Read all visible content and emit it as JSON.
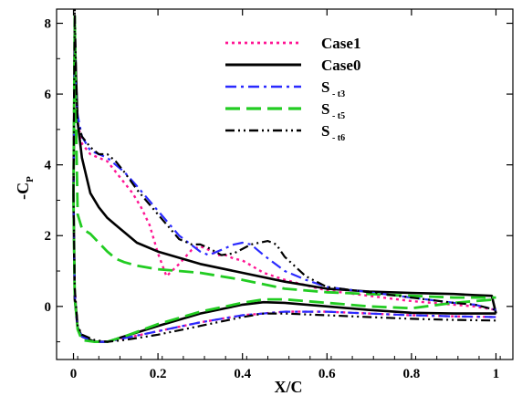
{
  "chart_data": {
    "type": "line",
    "xlabel": "X/C",
    "ylabel": "-C",
    "ylabel_sub": "P",
    "xlim": [
      -0.04,
      1.04
    ],
    "ylim": [
      -1.5,
      8.4
    ],
    "xticks": [
      0,
      0.2,
      0.4,
      0.6,
      0.8,
      1
    ],
    "xtick_labels": [
      "0",
      "0.2",
      "0.4",
      "0.6",
      "0.8",
      "1"
    ],
    "yticks": [
      0,
      2,
      4,
      6,
      8
    ],
    "ytick_labels": [
      "0",
      "2",
      "4",
      "6",
      "8"
    ],
    "grid": false,
    "legend_position": "top-right",
    "series": [
      {
        "name": "Case1",
        "color": "#ff1493",
        "dash": "dotted",
        "upper": [
          [
            0,
            3.2
          ],
          [
            0.003,
            6.8
          ],
          [
            0.006,
            6.0
          ],
          [
            0.01,
            5.2
          ],
          [
            0.02,
            4.6
          ],
          [
            0.04,
            4.3
          ],
          [
            0.06,
            4.2
          ],
          [
            0.08,
            4.1
          ],
          [
            0.1,
            3.8
          ],
          [
            0.12,
            3.5
          ],
          [
            0.14,
            3.2
          ],
          [
            0.16,
            2.8
          ],
          [
            0.18,
            2.3
          ],
          [
            0.2,
            1.5
          ],
          [
            0.22,
            0.85
          ],
          [
            0.25,
            1.2
          ],
          [
            0.28,
            1.6
          ],
          [
            0.3,
            1.7
          ],
          [
            0.32,
            1.6
          ],
          [
            0.34,
            1.45
          ],
          [
            0.36,
            1.45
          ],
          [
            0.38,
            1.35
          ],
          [
            0.4,
            1.3
          ],
          [
            0.45,
            0.95
          ],
          [
            0.5,
            0.75
          ],
          [
            0.6,
            0.45
          ],
          [
            0.7,
            0.3
          ],
          [
            0.8,
            0.15
          ],
          [
            0.9,
            0.05
          ],
          [
            0.95,
            0.0
          ],
          [
            1.0,
            -0.1
          ]
        ],
        "lower": [
          [
            0,
            3.2
          ],
          [
            0.003,
            0.5
          ],
          [
            0.01,
            -0.6
          ],
          [
            0.02,
            -0.85
          ],
          [
            0.05,
            -1.0
          ],
          [
            0.08,
            -1.0
          ],
          [
            0.12,
            -0.9
          ],
          [
            0.2,
            -0.7
          ],
          [
            0.3,
            -0.45
          ],
          [
            0.4,
            -0.25
          ],
          [
            0.5,
            -0.15
          ],
          [
            0.6,
            -0.15
          ],
          [
            0.7,
            -0.2
          ],
          [
            0.8,
            -0.25
          ],
          [
            0.9,
            -0.28
          ],
          [
            1.0,
            -0.3
          ]
        ]
      },
      {
        "name": "Case0",
        "color": "#000000",
        "dash": "solid",
        "upper": [
          [
            0,
            3.1
          ],
          [
            0.003,
            7.9
          ],
          [
            0.006,
            6.5
          ],
          [
            0.01,
            5.2
          ],
          [
            0.02,
            4.2
          ],
          [
            0.04,
            3.2
          ],
          [
            0.06,
            2.8
          ],
          [
            0.08,
            2.5
          ],
          [
            0.1,
            2.3
          ],
          [
            0.15,
            1.8
          ],
          [
            0.2,
            1.55
          ],
          [
            0.3,
            1.2
          ],
          [
            0.4,
            0.95
          ],
          [
            0.5,
            0.7
          ],
          [
            0.6,
            0.5
          ],
          [
            0.7,
            0.42
          ],
          [
            0.8,
            0.38
          ],
          [
            0.9,
            0.35
          ],
          [
            0.95,
            0.32
          ],
          [
            0.99,
            0.3
          ],
          [
            1.0,
            -0.2
          ]
        ],
        "lower": [
          [
            0,
            3.1
          ],
          [
            0.003,
            0.2
          ],
          [
            0.01,
            -0.6
          ],
          [
            0.02,
            -0.85
          ],
          [
            0.05,
            -1.0
          ],
          [
            0.08,
            -1.0
          ],
          [
            0.12,
            -0.85
          ],
          [
            0.2,
            -0.55
          ],
          [
            0.3,
            -0.2
          ],
          [
            0.4,
            0.05
          ],
          [
            0.45,
            0.12
          ],
          [
            0.5,
            0.1
          ],
          [
            0.6,
            0.0
          ],
          [
            0.7,
            -0.1
          ],
          [
            0.8,
            -0.18
          ],
          [
            0.9,
            -0.2
          ],
          [
            1.0,
            -0.2
          ]
        ]
      },
      {
        "name": "S",
        "subscript": " - t3",
        "color": "#2a2aff",
        "dash": "dashdot",
        "upper": [
          [
            0,
            3.1
          ],
          [
            0.003,
            7.2
          ],
          [
            0.006,
            6.0
          ],
          [
            0.01,
            5.4
          ],
          [
            0.02,
            4.8
          ],
          [
            0.04,
            4.4
          ],
          [
            0.06,
            4.3
          ],
          [
            0.08,
            4.2
          ],
          [
            0.1,
            4.0
          ],
          [
            0.12,
            3.8
          ],
          [
            0.15,
            3.4
          ],
          [
            0.2,
            2.7
          ],
          [
            0.25,
            2.0
          ],
          [
            0.3,
            1.55
          ],
          [
            0.32,
            1.45
          ],
          [
            0.35,
            1.6
          ],
          [
            0.38,
            1.75
          ],
          [
            0.4,
            1.8
          ],
          [
            0.42,
            1.75
          ],
          [
            0.45,
            1.45
          ],
          [
            0.5,
            1.0
          ],
          [
            0.55,
            0.75
          ],
          [
            0.6,
            0.55
          ],
          [
            0.7,
            0.4
          ],
          [
            0.8,
            0.25
          ],
          [
            0.9,
            0.1
          ],
          [
            0.95,
            0.05
          ],
          [
            1.0,
            -0.1
          ]
        ],
        "lower": [
          [
            0,
            3.1
          ],
          [
            0.003,
            0.4
          ],
          [
            0.01,
            -0.6
          ],
          [
            0.02,
            -0.85
          ],
          [
            0.05,
            -1.0
          ],
          [
            0.08,
            -1.0
          ],
          [
            0.12,
            -0.9
          ],
          [
            0.2,
            -0.7
          ],
          [
            0.3,
            -0.45
          ],
          [
            0.4,
            -0.25
          ],
          [
            0.5,
            -0.15
          ],
          [
            0.6,
            -0.15
          ],
          [
            0.7,
            -0.2
          ],
          [
            0.8,
            -0.25
          ],
          [
            0.9,
            -0.28
          ],
          [
            1.0,
            -0.3
          ]
        ]
      },
      {
        "name": "S",
        "subscript": " - t5",
        "color": "#22cc22",
        "dash": "dashed",
        "upper": [
          [
            0,
            3.1
          ],
          [
            0.003,
            8.2
          ],
          [
            0.006,
            5.2
          ],
          [
            0.01,
            2.6
          ],
          [
            0.02,
            2.2
          ],
          [
            0.04,
            2.05
          ],
          [
            0.06,
            1.8
          ],
          [
            0.08,
            1.55
          ],
          [
            0.1,
            1.35
          ],
          [
            0.12,
            1.25
          ],
          [
            0.15,
            1.15
          ],
          [
            0.2,
            1.05
          ],
          [
            0.25,
            1.0
          ],
          [
            0.3,
            0.95
          ],
          [
            0.4,
            0.75
          ],
          [
            0.5,
            0.5
          ],
          [
            0.6,
            0.4
          ],
          [
            0.7,
            0.35
          ],
          [
            0.8,
            0.3
          ],
          [
            0.9,
            0.25
          ],
          [
            0.95,
            0.25
          ],
          [
            1.0,
            0.25
          ]
        ],
        "lower": [
          [
            0,
            3.1
          ],
          [
            0.003,
            0.3
          ],
          [
            0.01,
            -0.65
          ],
          [
            0.02,
            -0.95
          ],
          [
            0.05,
            -1.0
          ],
          [
            0.08,
            -1.0
          ],
          [
            0.12,
            -0.85
          ],
          [
            0.2,
            -0.5
          ],
          [
            0.3,
            -0.15
          ],
          [
            0.4,
            0.1
          ],
          [
            0.45,
            0.2
          ],
          [
            0.5,
            0.2
          ],
          [
            0.6,
            0.1
          ],
          [
            0.7,
            0.0
          ],
          [
            0.8,
            -0.05
          ],
          [
            0.9,
            0.1
          ],
          [
            0.95,
            0.15
          ],
          [
            1.0,
            0.2
          ]
        ]
      },
      {
        "name": "S",
        "subscript": " - t6",
        "color": "#000000",
        "dash": "dashdotdot",
        "upper": [
          [
            0,
            3.2
          ],
          [
            0.003,
            8.4
          ],
          [
            0.006,
            6.5
          ],
          [
            0.01,
            5.2
          ],
          [
            0.02,
            4.8
          ],
          [
            0.04,
            4.5
          ],
          [
            0.06,
            4.3
          ],
          [
            0.08,
            4.3
          ],
          [
            0.1,
            4.1
          ],
          [
            0.12,
            3.8
          ],
          [
            0.15,
            3.3
          ],
          [
            0.2,
            2.6
          ],
          [
            0.25,
            1.9
          ],
          [
            0.28,
            1.75
          ],
          [
            0.3,
            1.75
          ],
          [
            0.32,
            1.65
          ],
          [
            0.35,
            1.45
          ],
          [
            0.38,
            1.5
          ],
          [
            0.42,
            1.75
          ],
          [
            0.46,
            1.85
          ],
          [
            0.48,
            1.75
          ],
          [
            0.5,
            1.4
          ],
          [
            0.55,
            0.85
          ],
          [
            0.6,
            0.55
          ],
          [
            0.7,
            0.4
          ],
          [
            0.8,
            0.25
          ],
          [
            0.9,
            0.1
          ],
          [
            0.95,
            0.05
          ],
          [
            1.0,
            -0.1
          ]
        ],
        "lower": [
          [
            0,
            3.2
          ],
          [
            0.003,
            0.5
          ],
          [
            0.01,
            -0.55
          ],
          [
            0.02,
            -0.8
          ],
          [
            0.05,
            -0.95
          ],
          [
            0.08,
            -1.0
          ],
          [
            0.12,
            -0.95
          ],
          [
            0.2,
            -0.8
          ],
          [
            0.3,
            -0.55
          ],
          [
            0.4,
            -0.3
          ],
          [
            0.45,
            -0.2
          ],
          [
            0.5,
            -0.2
          ],
          [
            0.6,
            -0.25
          ],
          [
            0.7,
            -0.3
          ],
          [
            0.8,
            -0.35
          ],
          [
            0.9,
            -0.38
          ],
          [
            1.0,
            -0.4
          ]
        ]
      }
    ]
  }
}
